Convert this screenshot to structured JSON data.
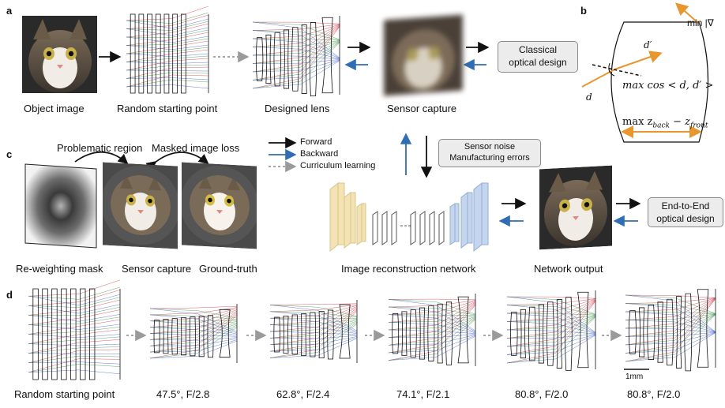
{
  "panels": {
    "a": {
      "letter": "a",
      "captions": {
        "object_image": "Object image",
        "random_start": "Random starting point",
        "designed_lens": "Designed lens",
        "sensor_capture": "Sensor capture"
      },
      "box_label": "Classical\noptical design"
    },
    "b": {
      "letter": "b",
      "top_label": "min |∇",
      "d_prime": "d′",
      "d": "d",
      "max_cos": "max cos < d, d′ >",
      "max_z": "max z",
      "z_back_sub": "back",
      "z_minus": " − z",
      "z_front_sub": "front"
    },
    "c": {
      "letter": "c",
      "problematic_region": "Problematic region",
      "masked_loss": "Masked image loss",
      "legend": {
        "forward": "Forward",
        "backward": "Backward",
        "curriculum": "Curriculum learning"
      },
      "noise_box": "Sensor noise\nManufacturing errors",
      "captions": {
        "reweighting_mask": "Re-weighting mask",
        "sensor_capture": "Sensor capture",
        "ground_truth": "Ground-truth",
        "network": "Image reconstruction network",
        "network_output": "Network output"
      },
      "e2e_box": "End-to-End\noptical design",
      "dots": "∘∘∘"
    },
    "d": {
      "letter": "d",
      "captions": [
        "Random starting point",
        "47.5°, F/2.8",
        "62.8°, F/2.4",
        "74.1°, F/2.1",
        "80.8°, F/2.0",
        "80.8°, F/2.0"
      ],
      "scale_bar": "1mm"
    }
  },
  "colors": {
    "forward_arrow": "#111111",
    "backward_arrow": "#2f6db5",
    "curriculum_arrow": "#9a9a9a",
    "orange": "#e8962e",
    "ray_red": "#d0283a",
    "ray_green": "#2d8c3c",
    "ray_blue": "#3457c8",
    "net_yellow": "#f3e3b4",
    "net_blue": "#c4d6ee"
  }
}
